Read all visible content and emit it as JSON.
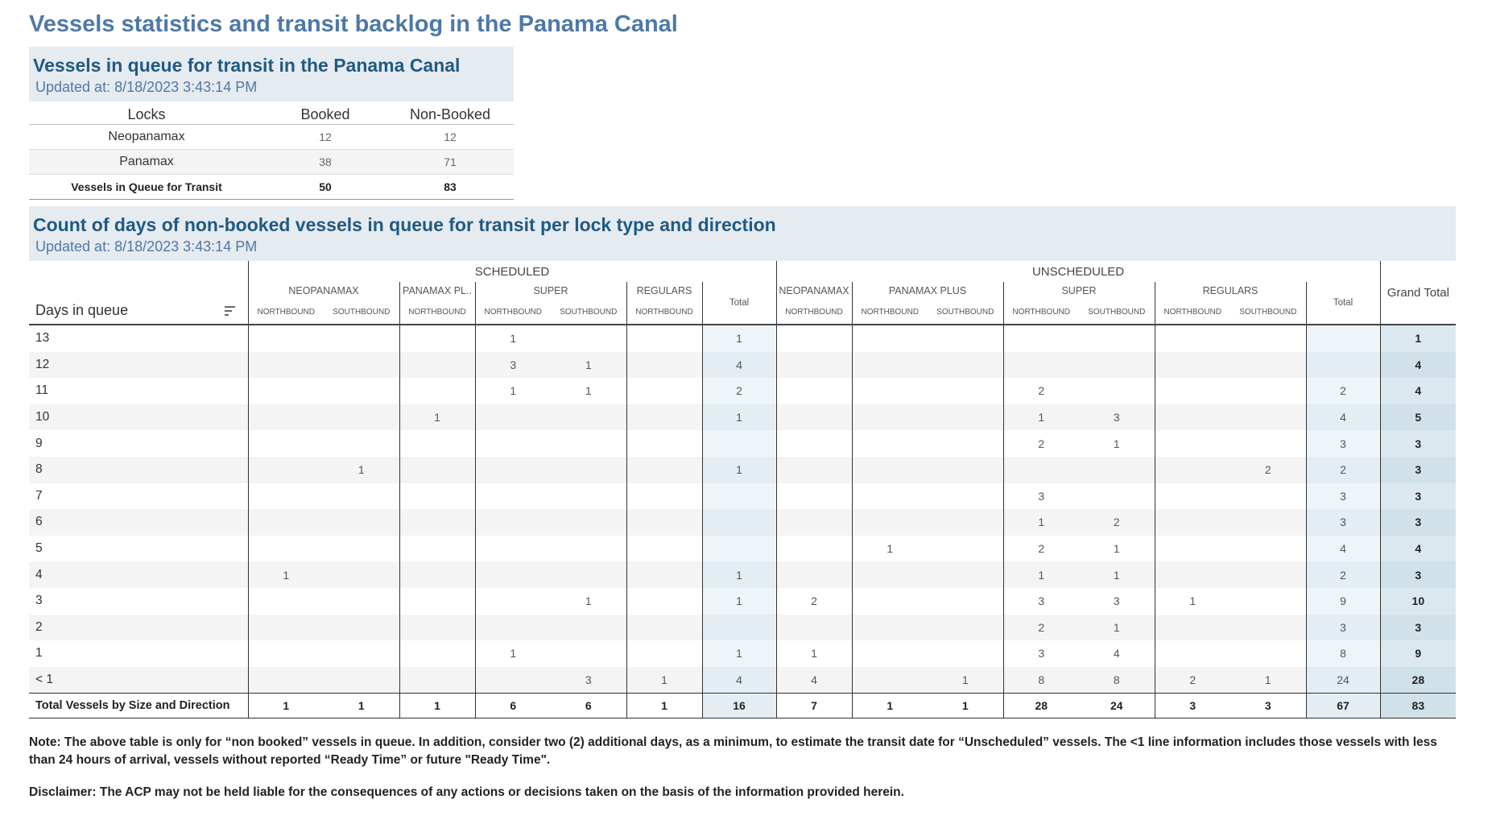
{
  "main_title": "Vessels statistics and transit backlog in the Panama Canal",
  "queue_panel": {
    "title": "Vessels in queue for transit in the Panama Canal",
    "updated": "Updated at:  8/18/2023 3:43:14 PM",
    "headers": [
      "Locks",
      "Booked",
      "Non-Booked"
    ],
    "rows": [
      {
        "label": "Neopanamax",
        "booked": "12",
        "non_booked": "12"
      },
      {
        "label": "Panamax",
        "booked": "38",
        "non_booked": "71"
      }
    ],
    "total": {
      "label": "Vessels in Queue for Transit",
      "booked": "50",
      "non_booked": "83"
    }
  },
  "days_panel": {
    "title": "Count of days of non-booked vessels in queue for transit per lock type and direction",
    "updated": "Updated at:  8/18/2023 3:43:14 PM",
    "groups": {
      "scheduled": "SCHEDULED",
      "unscheduled": "UNSCHEDULED",
      "grand_total": "Grand Total"
    },
    "scheduled_sub": {
      "neopanamax": "NEOPANAMAX",
      "panamax_plus": "PANAMAX PL..",
      "super": "SUPER",
      "regulars": "REGULARS",
      "total": "Total"
    },
    "unscheduled_sub": {
      "neopanamax": "NEOPANAMAX",
      "panamax_plus": "PANAMAX PLUS",
      "super": "SUPER",
      "regulars": "REGULARS",
      "total": "Total"
    },
    "dir": {
      "nb": "NORTHBOUND",
      "sb": "SOUTHBOUND"
    },
    "days_header": "Days in queue",
    "rows": [
      {
        "day": "13",
        "c": [
          "",
          "",
          "",
          "1",
          "",
          "",
          "1",
          "",
          "",
          "",
          "",
          "",
          "",
          "",
          "",
          "1"
        ]
      },
      {
        "day": "12",
        "c": [
          "",
          "",
          "",
          "3",
          "1",
          "",
          "4",
          "",
          "",
          "",
          "",
          "",
          "",
          "",
          "",
          "4"
        ]
      },
      {
        "day": "11",
        "c": [
          "",
          "",
          "",
          "1",
          "1",
          "",
          "2",
          "",
          "",
          "",
          "2",
          "",
          "",
          "",
          "2",
          "4"
        ]
      },
      {
        "day": "10",
        "c": [
          "",
          "",
          "1",
          "",
          "",
          "",
          "1",
          "",
          "",
          "",
          "1",
          "3",
          "",
          "",
          "4",
          "5"
        ]
      },
      {
        "day": "9",
        "c": [
          "",
          "",
          "",
          "",
          "",
          "",
          "",
          "",
          "",
          "",
          "2",
          "1",
          "",
          "",
          "3",
          "3"
        ]
      },
      {
        "day": "8",
        "c": [
          "",
          "1",
          "",
          "",
          "",
          "",
          "1",
          "",
          "",
          "",
          "",
          "",
          "",
          "2",
          "2",
          "3"
        ]
      },
      {
        "day": "7",
        "c": [
          "",
          "",
          "",
          "",
          "",
          "",
          "",
          "",
          "",
          "",
          "3",
          "",
          "",
          "",
          "3",
          "3"
        ]
      },
      {
        "day": "6",
        "c": [
          "",
          "",
          "",
          "",
          "",
          "",
          "",
          "",
          "",
          "",
          "1",
          "2",
          "",
          "",
          "3",
          "3"
        ]
      },
      {
        "day": "5",
        "c": [
          "",
          "",
          "",
          "",
          "",
          "",
          "",
          "",
          "1",
          "",
          "2",
          "1",
          "",
          "",
          "4",
          "4"
        ]
      },
      {
        "day": "4",
        "c": [
          "1",
          "",
          "",
          "",
          "",
          "",
          "1",
          "",
          "",
          "",
          "1",
          "1",
          "",
          "",
          "2",
          "3"
        ]
      },
      {
        "day": "3",
        "c": [
          "",
          "",
          "",
          "",
          "1",
          "",
          "1",
          "2",
          "",
          "",
          "3",
          "3",
          "1",
          "",
          "9",
          "10"
        ]
      },
      {
        "day": "2",
        "c": [
          "",
          "",
          "",
          "",
          "",
          "",
          "",
          "",
          "",
          "",
          "2",
          "1",
          "",
          "",
          "3",
          "3"
        ]
      },
      {
        "day": "1",
        "c": [
          "",
          "",
          "",
          "1",
          "",
          "",
          "1",
          "1",
          "",
          "",
          "3",
          "4",
          "",
          "",
          "8",
          "9"
        ]
      },
      {
        "day": "< 1",
        "c": [
          "",
          "",
          "",
          "",
          "3",
          "1",
          "4",
          "4",
          "",
          "1",
          "8",
          "8",
          "2",
          "1",
          "24",
          "28"
        ]
      }
    ],
    "total_row": {
      "day": "Total Vessels by Size and Direction",
      "c": [
        "1",
        "1",
        "1",
        "6",
        "6",
        "1",
        "16",
        "7",
        "1",
        "1",
        "28",
        "24",
        "3",
        "3",
        "67",
        "83"
      ]
    }
  },
  "note": "Note:  The above table is only for “non booked” vessels in queue. In addition, consider two (2) additional days, as a minimum, to estimate the transit date for “Unscheduled” vessels.  The <1 line information includes those vessels with less than 24 hours of arrival, vessels without reported “Ready Time” or future \"Ready Time\".",
  "disclaimer": "Disclaimer: The ACP may not be held liable for the consequences of any actions or decisions taken on the basis of the information provided herein."
}
